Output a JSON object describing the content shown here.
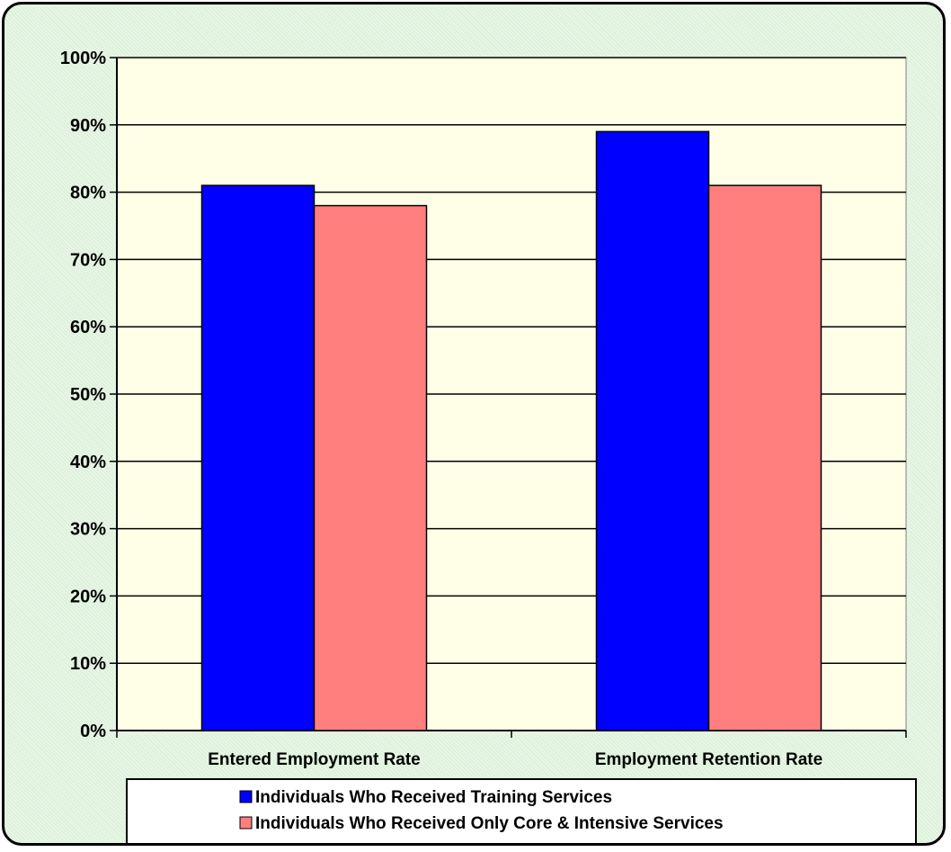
{
  "chart_data": {
    "type": "bar",
    "categories": [
      "Entered Employment Rate",
      "Employment Retention Rate"
    ],
    "series": [
      {
        "name": "Individuals Who  Received Training Services",
        "values": [
          81,
          89
        ],
        "color": "#0000ff"
      },
      {
        "name": "Individuals Who Received Only Core & Intensive Services",
        "values": [
          78,
          81
        ],
        "color": "#ff7f7f"
      }
    ],
    "ylim": [
      0,
      100
    ],
    "yticks": [
      0,
      10,
      20,
      30,
      40,
      50,
      60,
      70,
      80,
      90,
      100
    ],
    "ytick_labels": [
      "0%",
      "10%",
      "20%",
      "30%",
      "40%",
      "50%",
      "60%",
      "70%",
      "80%",
      "90%",
      "100%"
    ],
    "grid": true,
    "legend_position": "bottom",
    "plot_background": "#ffffe8"
  }
}
